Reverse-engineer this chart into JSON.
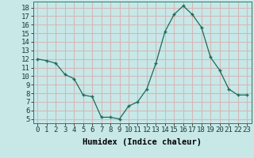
{
  "x": [
    0,
    1,
    2,
    3,
    4,
    5,
    6,
    7,
    8,
    9,
    10,
    11,
    12,
    13,
    14,
    15,
    16,
    17,
    18,
    19,
    20,
    21,
    22,
    23
  ],
  "y": [
    12.0,
    11.8,
    11.5,
    10.2,
    9.7,
    7.8,
    7.6,
    5.2,
    5.2,
    5.0,
    6.5,
    7.0,
    8.5,
    11.5,
    15.2,
    17.2,
    18.2,
    17.2,
    15.7,
    12.2,
    10.7,
    8.5,
    7.8,
    7.8
  ],
  "line_color": "#1a6b5a",
  "marker_color": "#1a6b5a",
  "bg_color": "#c8e8e8",
  "grid_color": "#d4b8b8",
  "xlabel": "Humidex (Indice chaleur)",
  "xlim": [
    -0.5,
    23.5
  ],
  "ylim": [
    4.5,
    18.7
  ],
  "yticks": [
    5,
    6,
    7,
    8,
    9,
    10,
    11,
    12,
    13,
    14,
    15,
    16,
    17,
    18
  ],
  "xticks": [
    0,
    1,
    2,
    3,
    4,
    5,
    6,
    7,
    8,
    9,
    10,
    11,
    12,
    13,
    14,
    15,
    16,
    17,
    18,
    19,
    20,
    21,
    22,
    23
  ],
  "xtick_labels": [
    "0",
    "1",
    "2",
    "3",
    "4",
    "5",
    "6",
    "7",
    "8",
    "9",
    "10",
    "11",
    "12",
    "13",
    "14",
    "15",
    "16",
    "17",
    "18",
    "19",
    "20",
    "21",
    "22",
    "23"
  ],
  "label_fontsize": 7.5,
  "tick_fontsize": 6.5
}
